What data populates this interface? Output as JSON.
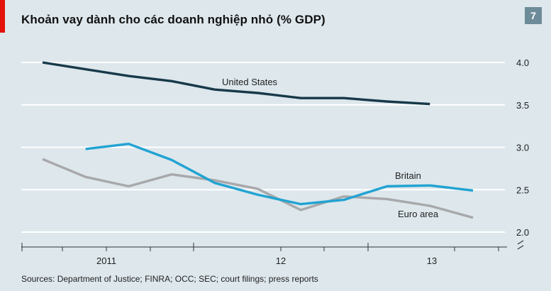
{
  "header": {
    "title": "Khoản vay dành cho các doanh nghiệp nhỏ (% GDP)",
    "badge": "7"
  },
  "footer": {
    "source": "Sources: Department of Justice; FINRA; OCC; SEC; court filings; press reports"
  },
  "colors": {
    "background": "#dde7ec",
    "united_states": "#17394a",
    "britain": "#21a3d2",
    "euro_area": "#a8a8aa",
    "accent_red": "#e3120b"
  },
  "chart_data": {
    "type": "line",
    "title": "Khoản vay dành cho các doanh nghiệp nhỏ (% GDP)",
    "x_tick_labels": [
      "2011",
      "12",
      "13"
    ],
    "y_ticks": [
      2.0,
      2.5,
      3.0,
      3.5,
      4.0
    ],
    "y_tick_labels": [
      "2.0",
      "2.5",
      "3.0",
      "3.5",
      "4.0"
    ],
    "ylim": [
      2.0,
      4.0
    ],
    "y_axis_break": true,
    "grid": true,
    "series": [
      {
        "name": "United States",
        "x": [
          "2010Q3",
          "2010Q4",
          "2011Q1",
          "2011Q2",
          "2011Q3",
          "2011Q4",
          "2012Q1",
          "2012Q2",
          "2012Q3",
          "2012Q4"
        ],
        "values": [
          4.0,
          3.92,
          3.84,
          3.78,
          3.68,
          3.64,
          3.58,
          3.58,
          3.54,
          3.51
        ]
      },
      {
        "name": "Britain",
        "x": [
          "2010Q4",
          "2011Q1",
          "2011Q2",
          "2011Q3",
          "2011Q4",
          "2012Q1",
          "2012Q2",
          "2012Q3",
          "2012Q4",
          "2013Q1"
        ],
        "values": [
          2.98,
          3.04,
          2.85,
          2.58,
          2.44,
          2.33,
          2.38,
          2.54,
          2.55,
          2.49
        ]
      },
      {
        "name": "Euro area",
        "x": [
          "2010Q3",
          "2010Q4",
          "2011Q1",
          "2011Q2",
          "2011Q3",
          "2011Q4",
          "2012Q1",
          "2012Q2",
          "2012Q3",
          "2012Q4",
          "2013Q1"
        ],
        "values": [
          2.86,
          2.65,
          2.54,
          2.68,
          2.61,
          2.51,
          2.26,
          2.42,
          2.39,
          2.31,
          2.17
        ]
      }
    ]
  }
}
